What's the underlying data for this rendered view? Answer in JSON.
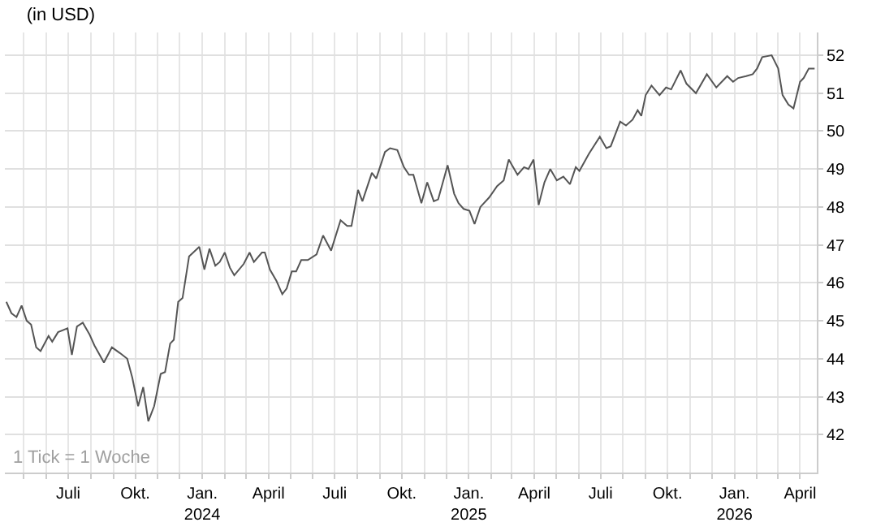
{
  "chart_data": {
    "type": "line",
    "title": "(in USD)",
    "annotations": [
      "1 Tick = 1 Woche"
    ],
    "x": [
      "2023-04-07",
      "2023-04-14",
      "2023-04-21",
      "2023-04-28",
      "2023-05-05",
      "2023-05-11",
      "2023-05-18",
      "2023-05-24",
      "2023-06-04",
      "2023-06-09",
      "2023-06-17",
      "2023-06-30",
      "2023-07-06",
      "2023-07-13",
      "2023-07-21",
      "2023-07-30",
      "2023-08-06",
      "2023-08-19",
      "2023-08-30",
      "2023-09-10",
      "2023-09-20",
      "2023-09-27",
      "2023-10-05",
      "2023-10-12",
      "2023-10-19",
      "2023-10-27",
      "2023-11-05",
      "2023-11-11",
      "2023-11-18",
      "2023-11-23",
      "2023-11-29",
      "2023-12-05",
      "2023-12-14",
      "2023-12-28",
      "2024-01-04",
      "2024-01-11",
      "2024-01-19",
      "2024-01-25",
      "2024-02-01",
      "2024-02-08",
      "2024-02-14",
      "2024-02-27",
      "2024-03-06",
      "2024-03-12",
      "2024-03-23",
      "2024-03-27",
      "2024-04-03",
      "2024-04-12",
      "2024-04-20",
      "2024-04-26",
      "2024-05-03",
      "2024-05-09",
      "2024-05-16",
      "2024-05-25",
      "2024-06-06",
      "2024-06-15",
      "2024-06-26",
      "2024-07-09",
      "2024-07-18",
      "2024-07-24",
      "2024-08-02",
      "2024-08-08",
      "2024-08-21",
      "2024-08-27",
      "2024-09-08",
      "2024-09-15",
      "2024-09-25",
      "2024-10-04",
      "2024-10-11",
      "2024-10-17",
      "2024-10-28",
      "2024-11-05",
      "2024-11-14",
      "2024-11-20",
      "2024-12-03",
      "2024-12-12",
      "2024-12-18",
      "2024-12-25",
      "2025-01-02",
      "2025-01-09",
      "2025-01-17",
      "2025-01-29",
      "2025-02-09",
      "2025-02-18",
      "2025-02-25",
      "2025-03-09",
      "2025-03-18",
      "2025-03-24",
      "2025-03-31",
      "2025-04-07",
      "2025-04-15",
      "2025-04-23",
      "2025-05-02",
      "2025-05-11",
      "2025-05-20",
      "2025-05-28",
      "2025-06-02",
      "2025-06-15",
      "2025-06-30",
      "2025-07-09",
      "2025-07-15",
      "2025-07-28",
      "2025-08-05",
      "2025-08-14",
      "2025-08-21",
      "2025-08-26",
      "2025-09-01",
      "2025-09-09",
      "2025-09-20",
      "2025-09-29",
      "2025-10-06",
      "2025-10-19",
      "2025-10-27",
      "2025-11-09",
      "2025-11-24",
      "2025-12-07",
      "2025-12-22",
      "2025-12-30",
      "2026-01-06",
      "2026-01-17",
      "2026-01-26",
      "2026-02-01",
      "2026-02-08",
      "2026-02-21",
      "2026-03-02",
      "2026-03-08",
      "2026-03-16",
      "2026-03-23",
      "2026-04-01",
      "2026-04-06",
      "2026-04-13",
      "2026-04-21"
    ],
    "series": [
      {
        "color": "#555555",
        "values": [
          45.5,
          45.2,
          45.1,
          45.4,
          45.0,
          44.9,
          44.3,
          44.2,
          44.6,
          44.45,
          44.7,
          44.8,
          44.1,
          44.85,
          44.95,
          44.65,
          44.35,
          43.9,
          44.3,
          44.15,
          44.0,
          43.5,
          42.75,
          43.25,
          42.35,
          42.75,
          43.6,
          43.65,
          44.4,
          44.5,
          45.5,
          45.6,
          46.7,
          46.95,
          46.35,
          46.9,
          46.45,
          46.55,
          46.8,
          46.4,
          46.2,
          46.5,
          46.8,
          46.55,
          46.8,
          46.8,
          46.35,
          46.05,
          45.7,
          45.85,
          46.3,
          46.3,
          46.6,
          46.6,
          46.75,
          47.25,
          46.85,
          47.65,
          47.5,
          47.5,
          48.45,
          48.15,
          48.9,
          48.75,
          49.45,
          49.55,
          49.5,
          49.05,
          48.85,
          48.85,
          48.1,
          48.65,
          48.15,
          48.2,
          49.1,
          48.35,
          48.1,
          47.95,
          47.9,
          47.55,
          48.0,
          48.25,
          48.55,
          48.7,
          49.25,
          48.85,
          49.05,
          49.0,
          49.25,
          48.05,
          48.65,
          49.0,
          48.7,
          48.8,
          48.6,
          49.05,
          48.95,
          49.4,
          49.85,
          49.55,
          49.6,
          50.25,
          50.15,
          50.3,
          50.55,
          50.4,
          50.95,
          51.2,
          50.95,
          51.15,
          51.1,
          51.6,
          51.25,
          51.0,
          51.5,
          51.15,
          51.45,
          51.3,
          51.4,
          51.45,
          51.5,
          51.65,
          51.95,
          52.0,
          51.65,
          50.95,
          50.7,
          50.6,
          51.3,
          51.4,
          51.65,
          51.65
        ]
      }
    ],
    "xlim": [
      "2023-04-05",
      "2026-04-24"
    ],
    "xticks": [
      {
        "value": "2023-05-01",
        "label": null
      },
      {
        "value": "2023-06-01",
        "label": null
      },
      {
        "value": "2023-07-01",
        "label": "Juli"
      },
      {
        "value": "2023-08-01",
        "label": null
      },
      {
        "value": "2023-09-01",
        "label": null
      },
      {
        "value": "2023-10-01",
        "label": "Okt."
      },
      {
        "value": "2023-11-01",
        "label": null
      },
      {
        "value": "2023-12-01",
        "label": null
      },
      {
        "value": "2024-01-01",
        "label": "Jan.\n2024"
      },
      {
        "value": "2024-02-01",
        "label": null
      },
      {
        "value": "2024-03-01",
        "label": null
      },
      {
        "value": "2024-04-01",
        "label": "April"
      },
      {
        "value": "2024-05-01",
        "label": null
      },
      {
        "value": "2024-06-01",
        "label": null
      },
      {
        "value": "2024-07-01",
        "label": "Juli"
      },
      {
        "value": "2024-08-01",
        "label": null
      },
      {
        "value": "2024-09-01",
        "label": null
      },
      {
        "value": "2024-10-01",
        "label": "Okt."
      },
      {
        "value": "2024-11-01",
        "label": null
      },
      {
        "value": "2024-12-01",
        "label": null
      },
      {
        "value": "2025-01-01",
        "label": "Jan.\n2025"
      },
      {
        "value": "2025-02-01",
        "label": null
      },
      {
        "value": "2025-03-01",
        "label": null
      },
      {
        "value": "2025-04-01",
        "label": "April"
      },
      {
        "value": "2025-05-01",
        "label": null
      },
      {
        "value": "2025-06-01",
        "label": null
      },
      {
        "value": "2025-07-01",
        "label": "Juli"
      },
      {
        "value": "2025-08-01",
        "label": null
      },
      {
        "value": "2025-09-01",
        "label": null
      },
      {
        "value": "2025-10-01",
        "label": "Okt."
      },
      {
        "value": "2025-11-01",
        "label": null
      },
      {
        "value": "2025-12-01",
        "label": null
      },
      {
        "value": "2026-01-01",
        "label": "Jan.\n2026"
      },
      {
        "value": "2026-02-01",
        "label": null
      },
      {
        "value": "2026-03-01",
        "label": null
      },
      {
        "value": "2026-04-01",
        "label": "April"
      }
    ],
    "ylim": [
      41,
      52.6
    ],
    "yticks": [
      42,
      43,
      44,
      45,
      46,
      47,
      48,
      49,
      50,
      51,
      52
    ],
    "grid": true,
    "marker": "none",
    "line_style": "solid"
  }
}
